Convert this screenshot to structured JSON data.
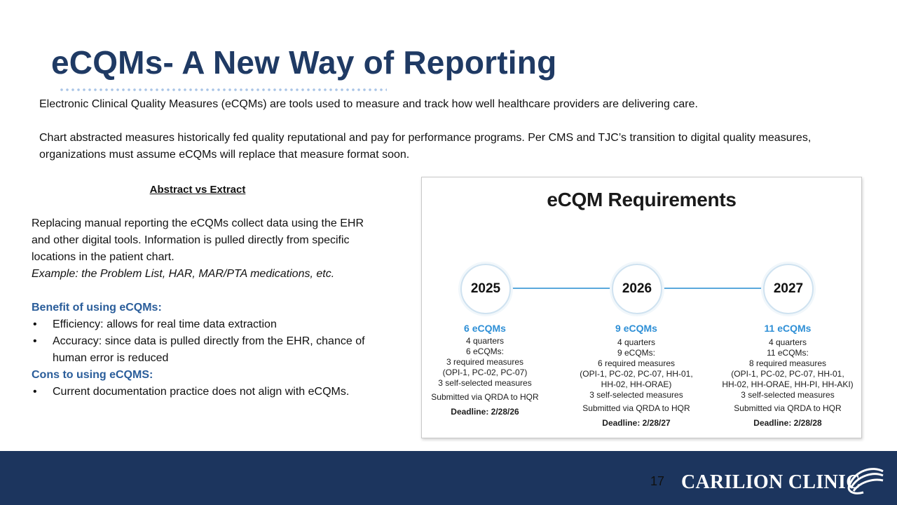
{
  "slide": {
    "title": "eCQMs- A New Way of Reporting",
    "intro_1": "Electronic Clinical Quality Measures (eCQMs) are tools used to measure and track how well healthcare providers are delivering care.",
    "intro_2": "Chart abstracted measures historically fed quality reputational and pay for performance programs. Per CMS and TJC’s transition to digital quality measures, organizations must assume eCQMs will replace that measure format soon.",
    "subheading": "Abstract vs Extract",
    "body_text": "Replacing manual reporting the eCQMs collect data using the EHR and other digital tools. Information is pulled directly from specific locations in the patient chart.",
    "example_text": "Example: the Problem List, HAR, MAR/PTA medications, etc.",
    "benefit_heading": "Benefit of using eCQMs:",
    "benefits": [
      "Efficiency: allows for real time data extraction",
      "Accuracy: since data is pulled directly from the EHR, chance of human error is reduced"
    ],
    "cons_heading": "Cons to using eCQMS:",
    "cons": [
      "Current documentation practice does not align with eCQMs."
    ],
    "page_number": "17"
  },
  "requirements": {
    "title": "eCQM Requirements",
    "years": [
      {
        "year": "2025",
        "count": "6 eCQMs",
        "lines": [
          "4 quarters",
          "6 eCQMs:",
          "3 required measures",
          "(OPI-1, PC-02, PC-07)",
          "3 self-selected measures",
          "Submitted via QRDA to HQR"
        ],
        "deadline": "Deadline: 2/28/26"
      },
      {
        "year": "2026",
        "count": "9 eCQMs",
        "lines": [
          "4 quarters",
          "9 eCQMs:",
          "6 required measures",
          "(OPI-1, PC-02, PC-07, HH-01,",
          "HH-02, HH-ORAE)",
          "3 self-selected measures",
          "Submitted via QRDA to HQR"
        ],
        "deadline": "Deadline: 2/28/27"
      },
      {
        "year": "2027",
        "count": "11 eCQMs",
        "lines": [
          "4 quarters",
          "11 eCQMs:",
          "8 required measures",
          "(OPI-1, PC-02, PC-07, HH-01,",
          "HH-02, HH-ORAE, HH-PI, HH-AKI)",
          "3 self-selected measures",
          "Submitted via QRDA to HQR"
        ],
        "deadline": "Deadline: 2/28/28"
      }
    ]
  },
  "footer": {
    "logo_text": "CARILION CLINIC",
    "bg_color": "#1c355e"
  }
}
